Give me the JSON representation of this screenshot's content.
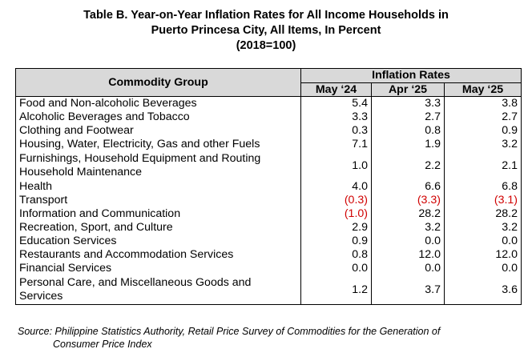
{
  "title": {
    "line1": "Table B. Year-on-Year Inflation Rates for All Income Households in",
    "line2": "Puerto Princesa City, All Items, In Percent",
    "line3": "(2018=100)"
  },
  "table": {
    "commodity_header": "Commodity Group",
    "rates_header": "Inflation Rates",
    "columns": [
      "May ‘24",
      "Apr ‘25",
      "May ‘25"
    ],
    "rows": [
      {
        "name": "Food and Non-alcoholic Beverages",
        "values": [
          "5.4",
          "3.3",
          "3.8"
        ]
      },
      {
        "name": "Alcoholic Beverages and Tobacco",
        "values": [
          "3.3",
          "2.7",
          "2.7"
        ]
      },
      {
        "name": "Clothing and Footwear",
        "values": [
          "0.3",
          "0.8",
          "0.9"
        ]
      },
      {
        "name": "Housing, Water, Electricity, Gas and other Fuels",
        "values": [
          "7.1",
          "1.9",
          "3.2"
        ]
      },
      {
        "name": "Furnishings, Household Equipment and Routing Household Maintenance",
        "values": [
          "1.0",
          "2.2",
          "2.1"
        ],
        "two_line": true
      },
      {
        "name": "Health",
        "values": [
          "4.0",
          "6.6",
          "6.8"
        ]
      },
      {
        "name": "Transport",
        "values": [
          "(0.3)",
          "(3.3)",
          "(3.1)"
        ],
        "negative": [
          true,
          true,
          true
        ]
      },
      {
        "name": "Information and Communication",
        "values": [
          "(1.0)",
          "28.2",
          "28.2"
        ],
        "negative": [
          true,
          false,
          false
        ]
      },
      {
        "name": "Recreation, Sport, and Culture",
        "values": [
          "2.9",
          "3.2",
          "3.2"
        ]
      },
      {
        "name": "Education Services",
        "values": [
          "0.9",
          "0.0",
          "0.0"
        ]
      },
      {
        "name": "Restaurants and Accommodation Services",
        "values": [
          "0.8",
          "12.0",
          "12.0"
        ]
      },
      {
        "name": "Financial Services",
        "values": [
          "0.0",
          "0.0",
          "0.0"
        ]
      },
      {
        "name": "Personal Care, and Miscellaneous Goods and Services",
        "values": [
          "1.2",
          "3.7",
          "3.6"
        ],
        "two_line": true
      }
    ]
  },
  "source": {
    "line1": "Source: Philippine Statistics Authority, Retail Price Survey of Commodities for the Generation of",
    "line2": "Consumer Price Index"
  },
  "colors": {
    "header_bg": "#d9d9d9",
    "negative": "#d00000"
  }
}
